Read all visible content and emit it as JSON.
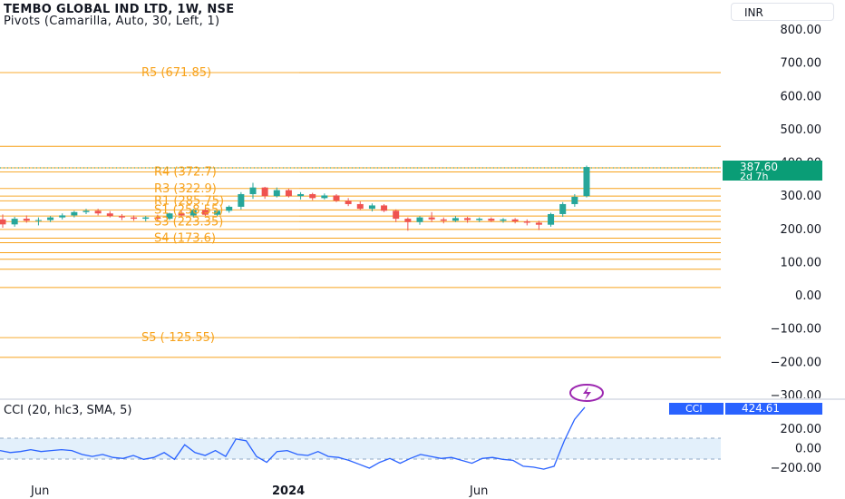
{
  "header": {
    "title": "TEMBO GLOBAL IND LTD, 1W, NSE",
    "indicator": "Pivots (Camarilla, Auto, 30, Left, 1)"
  },
  "currency": "INR",
  "colors": {
    "up": "#26a69a",
    "down": "#ef5350",
    "pivot": "#f7a21b",
    "cci_line": "#2962ff",
    "cci_band": "#e3f0fb",
    "cci_badge": "#2962ff",
    "price_badge": "#0a9d76",
    "alert": "#9c27b0"
  },
  "price_axis": {
    "labels": [
      "800.00",
      "700.00",
      "600.00",
      "500.00",
      "400.00",
      "300.00",
      "200.00",
      "100.00",
      "0.00",
      "−100.00",
      "−200.00",
      "−300.00"
    ],
    "values": [
      800,
      700,
      600,
      500,
      400,
      300,
      200,
      100,
      0,
      -100,
      -200,
      -300
    ]
  },
  "last_price": {
    "value": "387.60",
    "countdown": "2d 7h"
  },
  "pivot_labels": [
    {
      "text": "R5 (671.85)",
      "value": 671.85
    },
    {
      "text": "R4 (372.7)",
      "value": 372.7
    },
    {
      "text": "R3 (322.9)",
      "value": 322.9
    },
    {
      "text": "R1 (285.75)",
      "value": 285.75
    },
    {
      "text": "S1 (258.55)",
      "value": 258.55
    },
    {
      "text": "S3 (223.35)",
      "value": 223.35
    },
    {
      "text": "S4 (173.6)",
      "value": 173.6
    },
    {
      "text": "S5 (-125.55)",
      "value": -125.55
    }
  ],
  "cci": {
    "title": "CCI (20, hlc3, SMA, 5)",
    "badge_label": "CCI",
    "badge_value": "424.61",
    "axis_labels": [
      "200.00",
      "0.00",
      "−200.00"
    ],
    "axis_values": [
      200,
      0,
      -200
    ]
  },
  "time_axis": {
    "labels": [
      "Jun",
      "2024",
      "Jun"
    ]
  },
  "chart_data": {
    "type": "candlestick",
    "ylim": [
      -300,
      850
    ],
    "candles": [
      [
        230,
        245,
        205,
        215
      ],
      [
        215,
        238,
        208,
        232
      ],
      [
        232,
        242,
        220,
        226
      ],
      [
        226,
        236,
        212,
        228
      ],
      [
        228,
        240,
        222,
        236
      ],
      [
        236,
        248,
        230,
        242
      ],
      [
        242,
        256,
        236,
        252
      ],
      [
        252,
        262,
        246,
        256
      ],
      [
        256,
        262,
        242,
        248
      ],
      [
        248,
        255,
        236,
        240
      ],
      [
        240,
        246,
        228,
        236
      ],
      [
        236,
        242,
        226,
        232
      ],
      [
        232,
        240,
        224,
        236
      ],
      [
        236,
        244,
        228,
        232
      ],
      [
        232,
        250,
        228,
        248
      ],
      [
        248,
        258,
        238,
        242
      ],
      [
        242,
        262,
        236,
        258
      ],
      [
        258,
        264,
        240,
        244
      ],
      [
        244,
        260,
        240,
        256
      ],
      [
        256,
        272,
        250,
        268
      ],
      [
        268,
        312,
        260,
        306
      ],
      [
        306,
        340,
        292,
        326
      ],
      [
        326,
        328,
        292,
        300
      ],
      [
        300,
        326,
        296,
        318
      ],
      [
        318,
        322,
        296,
        300
      ],
      [
        300,
        312,
        290,
        306
      ],
      [
        306,
        310,
        288,
        294
      ],
      [
        294,
        308,
        290,
        302
      ],
      [
        302,
        306,
        282,
        286
      ],
      [
        286,
        294,
        270,
        276
      ],
      [
        276,
        284,
        258,
        262
      ],
      [
        262,
        278,
        254,
        272
      ],
      [
        272,
        276,
        252,
        256
      ],
      [
        256,
        260,
        222,
        232
      ],
      [
        232,
        236,
        196,
        222
      ],
      [
        222,
        240,
        214,
        236
      ],
      [
        236,
        252,
        222,
        230
      ],
      [
        230,
        236,
        218,
        226
      ],
      [
        226,
        240,
        222,
        234
      ],
      [
        234,
        238,
        220,
        228
      ],
      [
        228,
        236,
        222,
        232
      ],
      [
        232,
        236,
        222,
        226
      ],
      [
        226,
        234,
        220,
        230
      ],
      [
        230,
        234,
        218,
        224
      ],
      [
        224,
        230,
        212,
        220
      ],
      [
        220,
        226,
        198,
        214
      ],
      [
        214,
        250,
        208,
        246
      ],
      [
        246,
        282,
        238,
        276
      ],
      [
        276,
        306,
        268,
        298
      ],
      [
        300,
        392,
        296,
        387.6
      ]
    ],
    "pivots": [
      671.85,
      450,
      385,
      372.7,
      322.9,
      300,
      285.75,
      258.55,
      240,
      223.35,
      200,
      173.6,
      160,
      130,
      110,
      80,
      25,
      -125.55,
      -185
    ],
    "cci_values": [
      -20,
      -40,
      -30,
      -10,
      -30,
      -20,
      -10,
      -20,
      -60,
      -80,
      -60,
      -90,
      -100,
      -70,
      -110,
      -90,
      -40,
      -110,
      40,
      -40,
      -70,
      -20,
      -80,
      100,
      80,
      -80,
      -140,
      -30,
      -20,
      -60,
      -70,
      -30,
      -80,
      -90,
      -120,
      -160,
      -200,
      -140,
      -100,
      -150,
      -100,
      -60,
      -80,
      -100,
      -90,
      -120,
      -150,
      -100,
      -90,
      -110,
      -120,
      -180,
      -190,
      -210,
      -180,
      80,
      300,
      424.61
    ]
  }
}
